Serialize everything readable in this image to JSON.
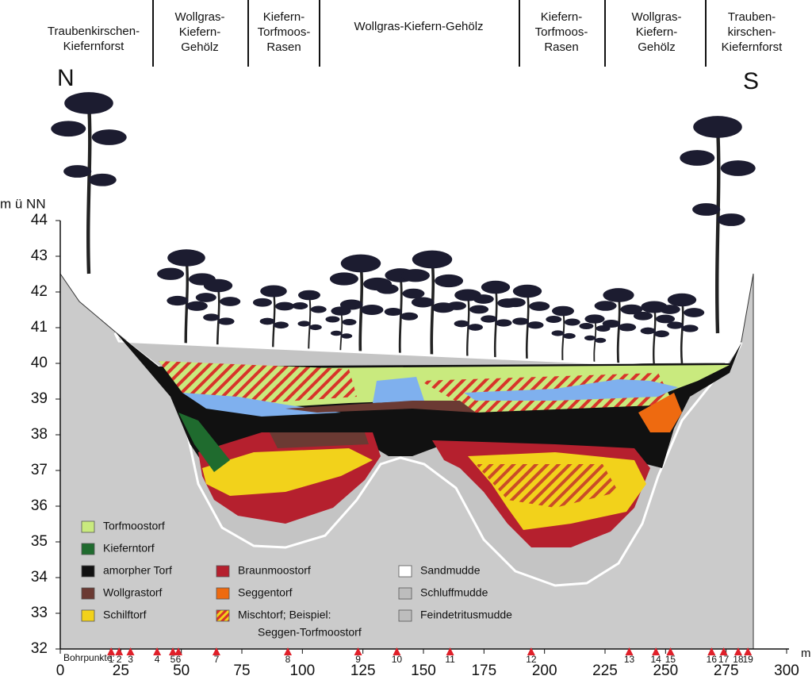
{
  "zones": [
    {
      "lines": [
        "Traubenkirschen-",
        "Kiefernforst"
      ]
    },
    {
      "lines": [
        "Wollgras-",
        "Kiefern-",
        "Gehölz"
      ]
    },
    {
      "lines": [
        "Kiefern-",
        "Torfmoos-",
        "Rasen"
      ]
    },
    {
      "lines": [
        "Wollgras-Kiefern-Gehölz"
      ]
    },
    {
      "lines": [
        "Kiefern-",
        "Torfmoos-",
        "Rasen"
      ]
    },
    {
      "lines": [
        "Wollgras-",
        "Kiefern-",
        "Gehölz"
      ]
    },
    {
      "lines": [
        "Trauben-",
        "kirschen-",
        "Kiefernforst"
      ]
    }
  ],
  "directions": {
    "north": "N",
    "south": "S"
  },
  "axes": {
    "y_label": "m ü NN",
    "x_unit": "m",
    "ylim": [
      32,
      44
    ],
    "yticks": [
      32,
      33,
      34,
      35,
      36,
      37,
      38,
      39,
      40,
      41,
      42,
      43,
      44
    ],
    "xlim": [
      0,
      300
    ],
    "xticks": [
      0,
      25,
      50,
      75,
      100,
      125,
      150,
      175,
      200,
      225,
      250,
      275,
      300
    ]
  },
  "boreholes": {
    "label": "Bohrpunkte:",
    "color": "#e0202a",
    "points": [
      {
        "label": "1",
        "x": 21
      },
      {
        "label": "2",
        "x": 24.3
      },
      {
        "label": "3",
        "x": 29
      },
      {
        "label": "4",
        "x": 40
      },
      {
        "label": "5",
        "x": 46.5
      },
      {
        "label": "6",
        "x": 48.8
      },
      {
        "label": "7",
        "x": 64.5
      },
      {
        "label": "8",
        "x": 94
      },
      {
        "label": "9",
        "x": 123
      },
      {
        "label": "10",
        "x": 139
      },
      {
        "label": "11",
        "x": 161
      },
      {
        "label": "12",
        "x": 194.5
      },
      {
        "label": "13",
        "x": 235
      },
      {
        "label": "14",
        "x": 246
      },
      {
        "label": "15",
        "x": 252
      },
      {
        "label": "16",
        "x": 269
      },
      {
        "label": "17",
        "x": 274
      },
      {
        "label": "18",
        "x": 280
      },
      {
        "label": "19",
        "x": 284
      }
    ]
  },
  "legend": [
    {
      "label": "Torfmoostorf",
      "color": "#c9ea7e"
    },
    {
      "label": "Kieferntorf",
      "color": "#1f6b2e"
    },
    {
      "label": "amorpher Torf",
      "color": "#111111"
    },
    {
      "label": "Wollgrastorf",
      "color": "#6b3a33"
    },
    {
      "label": "Schilftorf",
      "color": "#f2d21b"
    },
    {
      "label": "Braunmoostorf",
      "color": "#b5202e"
    },
    {
      "label": "Seggentorf",
      "color": "#ee6a10"
    },
    {
      "label": "Mischtorf; Beispiel:",
      "label2": "Seggen-Torfmoostorf",
      "color": "#f2d21b",
      "hatch_color": "#d8342a"
    },
    {
      "label": "Sandmudde",
      "color": "#ffffff"
    },
    {
      "label": "Schluffmudde",
      "color": "#bdbdbd"
    },
    {
      "label": "Feindetritusmudde",
      "color": "#bdbdbd"
    }
  ]
}
